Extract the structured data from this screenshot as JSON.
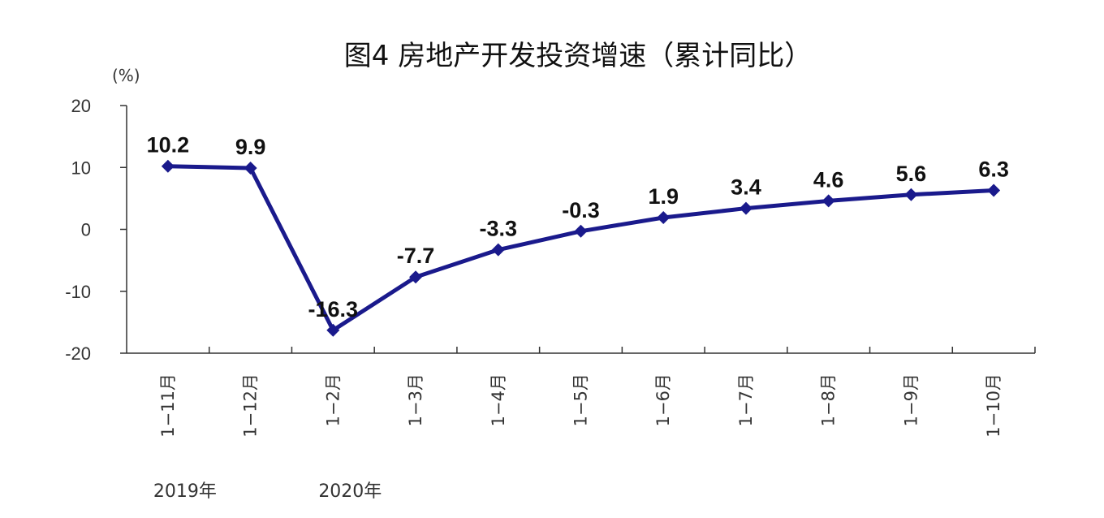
{
  "chart_data": {
    "type": "line",
    "title": "图4 房地产开发投资增速（累计同比）",
    "unit_label": "(%)",
    "categories": [
      "1−11月",
      "1−12月",
      "1−2月",
      "1−3月",
      "1−4月",
      "1−5月",
      "1−6月",
      "1−7月",
      "1−8月",
      "1−9月",
      "1−10月"
    ],
    "year_labels": [
      {
        "text": "2019年",
        "category_index": 0
      },
      {
        "text": "2020年",
        "category_index": 2
      }
    ],
    "series": [
      {
        "values": [
          10.2,
          9.9,
          -16.3,
          -7.7,
          -3.3,
          -0.3,
          1.9,
          3.4,
          4.6,
          5.6,
          6.3
        ]
      }
    ],
    "data_labels": [
      "10.2",
      "9.9",
      "-16.3",
      "-7.7",
      "-3.3",
      "-0.3",
      "1.9",
      "3.4",
      "4.6",
      "5.6",
      "6.3"
    ],
    "ylim": [
      -20,
      20
    ],
    "yticks": [
      20,
      10,
      0,
      -10,
      -20
    ],
    "grid": false,
    "colors": {
      "line": "#1a1a8c",
      "marker": "#1a1a8c"
    },
    "marker": "diamond"
  }
}
